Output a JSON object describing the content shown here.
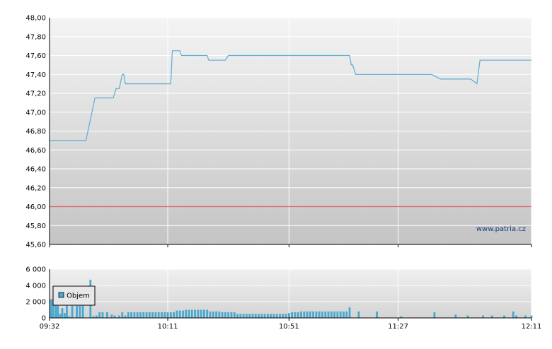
{
  "chart_data": [
    {
      "type": "line",
      "ylim": [
        45.6,
        48.0
      ],
      "y_ticks": [
        "48,00",
        "47,80",
        "47,60",
        "47,40",
        "47,20",
        "47,00",
        "46,80",
        "46,60",
        "46,40",
        "46,20",
        "46,00",
        "45,80",
        "45,60"
      ],
      "y_tick_values": [
        48.0,
        47.8,
        47.6,
        47.4,
        47.2,
        47.0,
        46.8,
        46.6,
        46.4,
        46.2,
        46.0,
        45.8,
        45.6
      ],
      "x_ticks": [
        "09:32",
        "10:11",
        "10:51",
        "11:27",
        "12:11"
      ],
      "x_tick_minutes": [
        572,
        611,
        651,
        687,
        731
      ],
      "xlim_minutes": [
        572,
        731
      ],
      "reference_line": {
        "value": 46.0,
        "color": "#e06060"
      },
      "series": [
        {
          "color": "#5aaed6",
          "points": [
            [
              572,
              46.7
            ],
            [
              584,
              46.7
            ],
            [
              586,
              47.0
            ],
            [
              587,
              47.15
            ],
            [
              593,
              47.15
            ],
            [
              594,
              47.25
            ],
            [
              595,
              47.25
            ],
            [
              596,
              47.4
            ],
            [
              596.5,
              47.4
            ],
            [
              597,
              47.3
            ],
            [
              612,
              47.3
            ],
            [
              612.5,
              47.65
            ],
            [
              615,
              47.65
            ],
            [
              615.5,
              47.6
            ],
            [
              624,
              47.6
            ],
            [
              624.5,
              47.55
            ],
            [
              630,
              47.55
            ],
            [
              631,
              47.6
            ],
            [
              671,
              47.6
            ],
            [
              671.5,
              47.5
            ],
            [
              672,
              47.5
            ],
            [
              673,
              47.4
            ],
            [
              698,
              47.4
            ],
            [
              701,
              47.35
            ],
            [
              711,
              47.35
            ],
            [
              713,
              47.3
            ],
            [
              714,
              47.55
            ],
            [
              731,
              47.55
            ]
          ]
        }
      ],
      "watermark": "www.patria.cz"
    },
    {
      "type": "bar",
      "title": "Objem",
      "ylim": [
        0,
        6000
      ],
      "y_ticks": [
        "6 000",
        "4 000",
        "2 000",
        "0"
      ],
      "y_tick_values": [
        6000,
        4000,
        2000,
        0
      ],
      "x_ticks": [
        "09:32",
        "10:11",
        "10:51",
        "11:27",
        "12:11"
      ],
      "x_tick_minutes": [
        572,
        611,
        651,
        687,
        731
      ],
      "xlim_minutes": [
        572,
        731
      ],
      "color": "#4aa8d0",
      "legend": "Objem",
      "bars": [
        [
          572.5,
          2300
        ],
        [
          573.2,
          2300
        ],
        [
          574,
          2000
        ],
        [
          574.7,
          1500
        ],
        [
          575.5,
          500
        ],
        [
          576.2,
          1200
        ],
        [
          577,
          600
        ],
        [
          577.7,
          1500
        ],
        [
          578.5,
          200
        ],
        [
          579.5,
          1500
        ],
        [
          581,
          1500
        ],
        [
          582,
          1500
        ],
        [
          583,
          1500
        ],
        [
          585.5,
          4700
        ],
        [
          586.5,
          200
        ],
        [
          587.5,
          300
        ],
        [
          588.5,
          700
        ],
        [
          589.5,
          700
        ],
        [
          591,
          700
        ],
        [
          592.5,
          400
        ],
        [
          593.5,
          300
        ],
        [
          595,
          300
        ],
        [
          596,
          700
        ],
        [
          597,
          300
        ],
        [
          598,
          700
        ],
        [
          599,
          700
        ],
        [
          600,
          700
        ],
        [
          601,
          700
        ],
        [
          602,
          700
        ],
        [
          603,
          700
        ],
        [
          604,
          700
        ],
        [
          605,
          700
        ],
        [
          606,
          700
        ],
        [
          607,
          700
        ],
        [
          608,
          700
        ],
        [
          609,
          700
        ],
        [
          610,
          700
        ],
        [
          611,
          700
        ],
        [
          612,
          700
        ],
        [
          613,
          700
        ],
        [
          614,
          900
        ],
        [
          615,
          900
        ],
        [
          616,
          900
        ],
        [
          617,
          1000
        ],
        [
          618,
          1000
        ],
        [
          619,
          1000
        ],
        [
          620,
          1000
        ],
        [
          621,
          1000
        ],
        [
          622,
          1000
        ],
        [
          623,
          1000
        ],
        [
          624,
          1000
        ],
        [
          625,
          800
        ],
        [
          626,
          800
        ],
        [
          627,
          800
        ],
        [
          628,
          800
        ],
        [
          629,
          700
        ],
        [
          630,
          700
        ],
        [
          631,
          700
        ],
        [
          632,
          700
        ],
        [
          633,
          700
        ],
        [
          634,
          500
        ],
        [
          635,
          500
        ],
        [
          636,
          500
        ],
        [
          637,
          500
        ],
        [
          638,
          500
        ],
        [
          639,
          500
        ],
        [
          640,
          500
        ],
        [
          641,
          500
        ],
        [
          642,
          500
        ],
        [
          643,
          500
        ],
        [
          644,
          500
        ],
        [
          645,
          500
        ],
        [
          646,
          500
        ],
        [
          647,
          500
        ],
        [
          648,
          500
        ],
        [
          649,
          500
        ],
        [
          650,
          500
        ],
        [
          651,
          600
        ],
        [
          652,
          700
        ],
        [
          653,
          700
        ],
        [
          654,
          700
        ],
        [
          655,
          800
        ],
        [
          656,
          800
        ],
        [
          657,
          800
        ],
        [
          658,
          800
        ],
        [
          659,
          800
        ],
        [
          660,
          800
        ],
        [
          661,
          800
        ],
        [
          662,
          800
        ],
        [
          663,
          800
        ],
        [
          664,
          800
        ],
        [
          665,
          800
        ],
        [
          666,
          800
        ],
        [
          667,
          800
        ],
        [
          668,
          800
        ],
        [
          669,
          800
        ],
        [
          670,
          800
        ],
        [
          671,
          1300
        ],
        [
          674,
          800
        ],
        [
          680,
          800
        ],
        [
          688,
          200
        ],
        [
          699,
          700
        ],
        [
          706,
          400
        ],
        [
          710,
          300
        ],
        [
          715,
          300
        ],
        [
          718,
          300
        ],
        [
          722,
          300
        ],
        [
          725,
          800
        ],
        [
          726,
          300
        ],
        [
          729,
          300
        ],
        [
          731,
          300
        ]
      ]
    }
  ]
}
